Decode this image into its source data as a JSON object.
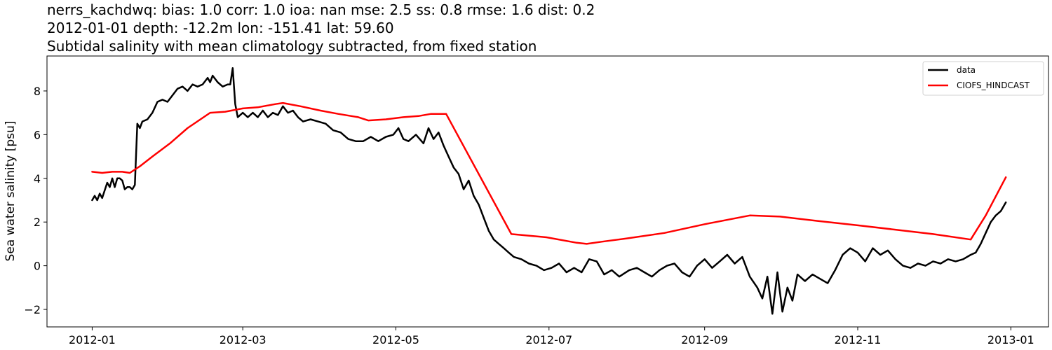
{
  "chart_data": {
    "type": "line",
    "title_lines": [
      "nerrs_kachdwq: bias: 1.0  corr: 1.0  ioa: nan  mse: 2.5  ss: 0.8  rmse: 1.6  dist: 0.2",
      "2012-01-01 depth: -12.2m lon: -151.41 lat: 59.60",
      "Subtidal salinity with mean climatology subtracted, from fixed station"
    ],
    "xlabel": "",
    "ylabel": "Sea water salinity [psu]",
    "x_ticks": [
      "2012-01",
      "2012-03",
      "2012-05",
      "2012-07",
      "2012-09",
      "2012-11",
      "2013-01"
    ],
    "y_ticks": [
      -2,
      0,
      2,
      4,
      6,
      8
    ],
    "xlim": [
      "2011-12-14",
      "2013-01-16"
    ],
    "ylim": [
      -2.8,
      9.6
    ],
    "legend_position": "top-right",
    "grid": false,
    "series": [
      {
        "name": "data",
        "color": "#000000",
        "points": [
          [
            "2012-01-01",
            3.0
          ],
          [
            "2012-01-02",
            3.2
          ],
          [
            "2012-01-03",
            3.0
          ],
          [
            "2012-01-04",
            3.3
          ],
          [
            "2012-01-05",
            3.1
          ],
          [
            "2012-01-07",
            3.8
          ],
          [
            "2012-01-08",
            3.6
          ],
          [
            "2012-01-09",
            4.0
          ],
          [
            "2012-01-10",
            3.6
          ],
          [
            "2012-01-11",
            4.0
          ],
          [
            "2012-01-12",
            4.0
          ],
          [
            "2012-01-13",
            3.9
          ],
          [
            "2012-01-14",
            3.5
          ],
          [
            "2012-01-15",
            3.6
          ],
          [
            "2012-01-16",
            3.6
          ],
          [
            "2012-01-17",
            3.5
          ],
          [
            "2012-01-18",
            3.7
          ],
          [
            "2012-01-19",
            6.5
          ],
          [
            "2012-01-20",
            6.3
          ],
          [
            "2012-01-21",
            6.6
          ],
          [
            "2012-01-23",
            6.7
          ],
          [
            "2012-01-25",
            7.0
          ],
          [
            "2012-01-27",
            7.5
          ],
          [
            "2012-01-29",
            7.6
          ],
          [
            "2012-01-31",
            7.5
          ],
          [
            "2012-02-02",
            7.8
          ],
          [
            "2012-02-04",
            8.1
          ],
          [
            "2012-02-06",
            8.2
          ],
          [
            "2012-02-08",
            8.0
          ],
          [
            "2012-02-10",
            8.3
          ],
          [
            "2012-02-12",
            8.2
          ],
          [
            "2012-02-14",
            8.3
          ],
          [
            "2012-02-16",
            8.6
          ],
          [
            "2012-02-17",
            8.4
          ],
          [
            "2012-02-18",
            8.7
          ],
          [
            "2012-02-20",
            8.4
          ],
          [
            "2012-02-22",
            8.2
          ],
          [
            "2012-02-24",
            8.3
          ],
          [
            "2012-02-25",
            8.3
          ],
          [
            "2012-02-26",
            9.05
          ],
          [
            "2012-02-27",
            7.4
          ],
          [
            "2012-02-28",
            6.8
          ],
          [
            "2012-03-01",
            7.0
          ],
          [
            "2012-03-03",
            6.8
          ],
          [
            "2012-03-05",
            7.0
          ],
          [
            "2012-03-07",
            6.8
          ],
          [
            "2012-03-09",
            7.1
          ],
          [
            "2012-03-11",
            6.8
          ],
          [
            "2012-03-13",
            7.0
          ],
          [
            "2012-03-15",
            6.9
          ],
          [
            "2012-03-17",
            7.3
          ],
          [
            "2012-03-19",
            7.0
          ],
          [
            "2012-03-21",
            7.1
          ],
          [
            "2012-03-23",
            6.8
          ],
          [
            "2012-03-25",
            6.6
          ],
          [
            "2012-03-28",
            6.7
          ],
          [
            "2012-03-31",
            6.6
          ],
          [
            "2012-04-03",
            6.5
          ],
          [
            "2012-04-06",
            6.2
          ],
          [
            "2012-04-09",
            6.1
          ],
          [
            "2012-04-12",
            5.8
          ],
          [
            "2012-04-15",
            5.7
          ],
          [
            "2012-04-18",
            5.7
          ],
          [
            "2012-04-21",
            5.9
          ],
          [
            "2012-04-24",
            5.7
          ],
          [
            "2012-04-27",
            5.9
          ],
          [
            "2012-04-30",
            6.0
          ],
          [
            "2012-05-02",
            6.3
          ],
          [
            "2012-05-04",
            5.8
          ],
          [
            "2012-05-06",
            5.7
          ],
          [
            "2012-05-09",
            6.0
          ],
          [
            "2012-05-12",
            5.6
          ],
          [
            "2012-05-14",
            6.3
          ],
          [
            "2012-05-16",
            5.8
          ],
          [
            "2012-05-18",
            6.1
          ],
          [
            "2012-05-20",
            5.5
          ],
          [
            "2012-05-22",
            5.0
          ],
          [
            "2012-05-24",
            4.5
          ],
          [
            "2012-05-26",
            4.2
          ],
          [
            "2012-05-28",
            3.5
          ],
          [
            "2012-05-30",
            3.9
          ],
          [
            "2012-06-01",
            3.2
          ],
          [
            "2012-06-03",
            2.8
          ],
          [
            "2012-06-05",
            2.2
          ],
          [
            "2012-06-07",
            1.6
          ],
          [
            "2012-06-09",
            1.2
          ],
          [
            "2012-06-11",
            1.0
          ],
          [
            "2012-06-13",
            0.8
          ],
          [
            "2012-06-15",
            0.6
          ],
          [
            "2012-06-17",
            0.4
          ],
          [
            "2012-06-20",
            0.3
          ],
          [
            "2012-06-23",
            0.1
          ],
          [
            "2012-06-26",
            0.0
          ],
          [
            "2012-06-29",
            -0.2
          ],
          [
            "2012-07-02",
            -0.1
          ],
          [
            "2012-07-05",
            0.1
          ],
          [
            "2012-07-08",
            -0.3
          ],
          [
            "2012-07-11",
            -0.1
          ],
          [
            "2012-07-14",
            -0.3
          ],
          [
            "2012-07-17",
            0.3
          ],
          [
            "2012-07-20",
            0.2
          ],
          [
            "2012-07-23",
            -0.4
          ],
          [
            "2012-07-26",
            -0.2
          ],
          [
            "2012-07-29",
            -0.5
          ],
          [
            "2012-08-02",
            -0.2
          ],
          [
            "2012-08-05",
            -0.1
          ],
          [
            "2012-08-08",
            -0.3
          ],
          [
            "2012-08-11",
            -0.5
          ],
          [
            "2012-08-14",
            -0.2
          ],
          [
            "2012-08-17",
            0.0
          ],
          [
            "2012-08-20",
            0.1
          ],
          [
            "2012-08-23",
            -0.3
          ],
          [
            "2012-08-26",
            -0.5
          ],
          [
            "2012-08-29",
            0.0
          ],
          [
            "2012-09-01",
            0.3
          ],
          [
            "2012-09-04",
            -0.1
          ],
          [
            "2012-09-07",
            0.2
          ],
          [
            "2012-09-10",
            0.5
          ],
          [
            "2012-09-13",
            0.1
          ],
          [
            "2012-09-16",
            0.4
          ],
          [
            "2012-09-19",
            -0.5
          ],
          [
            "2012-09-22",
            -1.0
          ],
          [
            "2012-09-24",
            -1.5
          ],
          [
            "2012-09-26",
            -0.5
          ],
          [
            "2012-09-28",
            -2.2
          ],
          [
            "2012-09-30",
            -0.3
          ],
          [
            "2012-10-02",
            -2.1
          ],
          [
            "2012-10-04",
            -1.0
          ],
          [
            "2012-10-06",
            -1.6
          ],
          [
            "2012-10-08",
            -0.4
          ],
          [
            "2012-10-11",
            -0.7
          ],
          [
            "2012-10-14",
            -0.4
          ],
          [
            "2012-10-17",
            -0.6
          ],
          [
            "2012-10-20",
            -0.8
          ],
          [
            "2012-10-23",
            -0.2
          ],
          [
            "2012-10-26",
            0.5
          ],
          [
            "2012-10-29",
            0.8
          ],
          [
            "2012-11-01",
            0.6
          ],
          [
            "2012-11-04",
            0.2
          ],
          [
            "2012-11-07",
            0.8
          ],
          [
            "2012-11-10",
            0.5
          ],
          [
            "2012-11-13",
            0.7
          ],
          [
            "2012-11-16",
            0.3
          ],
          [
            "2012-11-19",
            0.0
          ],
          [
            "2012-11-22",
            -0.1
          ],
          [
            "2012-11-25",
            0.1
          ],
          [
            "2012-11-28",
            0.0
          ],
          [
            "2012-12-01",
            0.2
          ],
          [
            "2012-12-04",
            0.1
          ],
          [
            "2012-12-07",
            0.3
          ],
          [
            "2012-12-10",
            0.2
          ],
          [
            "2012-12-13",
            0.3
          ],
          [
            "2012-12-16",
            0.5
          ],
          [
            "2012-12-18",
            0.6
          ],
          [
            "2012-12-20",
            1.0
          ],
          [
            "2012-12-22",
            1.5
          ],
          [
            "2012-12-24",
            2.0
          ],
          [
            "2012-12-26",
            2.3
          ],
          [
            "2012-12-28",
            2.5
          ],
          [
            "2012-12-30",
            2.9
          ]
        ]
      },
      {
        "name": "CIOFS_HINDCAST",
        "color": "#ff0000",
        "points": [
          [
            "2012-01-01",
            4.3
          ],
          [
            "2012-01-05",
            4.25
          ],
          [
            "2012-01-09",
            4.3
          ],
          [
            "2012-01-13",
            4.3
          ],
          [
            "2012-01-16",
            4.25
          ],
          [
            "2012-01-20",
            4.55
          ],
          [
            "2012-01-25",
            5.0
          ],
          [
            "2012-02-01",
            5.6
          ],
          [
            "2012-02-08",
            6.3
          ],
          [
            "2012-02-17",
            7.0
          ],
          [
            "2012-02-23",
            7.05
          ],
          [
            "2012-03-01",
            7.2
          ],
          [
            "2012-03-07",
            7.25
          ],
          [
            "2012-03-14",
            7.4
          ],
          [
            "2012-03-17",
            7.45
          ],
          [
            "2012-03-24",
            7.3
          ],
          [
            "2012-04-01",
            7.1
          ],
          [
            "2012-04-08",
            6.95
          ],
          [
            "2012-04-16",
            6.8
          ],
          [
            "2012-04-20",
            6.65
          ],
          [
            "2012-04-27",
            6.7
          ],
          [
            "2012-05-04",
            6.8
          ],
          [
            "2012-05-10",
            6.85
          ],
          [
            "2012-05-15",
            6.95
          ],
          [
            "2012-05-21",
            6.95
          ],
          [
            "2012-06-16",
            1.45
          ],
          [
            "2012-06-30",
            1.3
          ],
          [
            "2012-07-12",
            1.05
          ],
          [
            "2012-07-16",
            1.0
          ],
          [
            "2012-07-22",
            1.1
          ],
          [
            "2012-08-01",
            1.25
          ],
          [
            "2012-08-16",
            1.5
          ],
          [
            "2012-09-01",
            1.9
          ],
          [
            "2012-09-19",
            2.3
          ],
          [
            "2012-10-01",
            2.25
          ],
          [
            "2012-10-16",
            2.05
          ],
          [
            "2012-11-01",
            1.85
          ],
          [
            "2012-11-16",
            1.65
          ],
          [
            "2012-12-01",
            1.45
          ],
          [
            "2012-12-16",
            1.2
          ],
          [
            "2012-12-22",
            2.3
          ],
          [
            "2012-12-30",
            4.05
          ]
        ]
      }
    ]
  }
}
